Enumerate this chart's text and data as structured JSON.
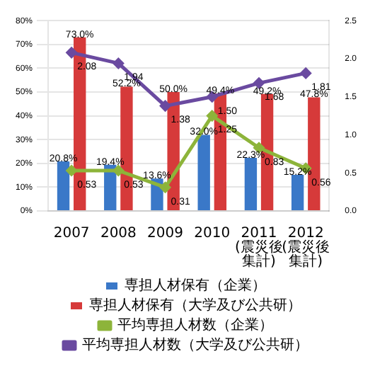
{
  "chart_data": {
    "type": "bar",
    "categories": [
      "2007",
      "2008",
      "2009",
      "2010",
      "2011(震災後集計)",
      "2012(震災後集計)"
    ],
    "series": [
      {
        "name": "専担人材保有（企業）",
        "color": "#3a78c8",
        "values": [
          20.8,
          19.4,
          13.6,
          32.0,
          22.3,
          15.2
        ],
        "value_labels": [
          "20.8%",
          "19.4%",
          "13.6%",
          "32.0%",
          "22.3%",
          "15.2%"
        ]
      },
      {
        "name": "専担人材保有（大学及び公共研）",
        "color": "#d63a3a",
        "values": [
          73.0,
          52.2,
          50.0,
          49.4,
          49.2,
          47.8
        ],
        "value_labels": [
          "73.0%",
          "52.2%",
          "50.0%",
          "49.4%",
          "49.2%",
          "47.8%"
        ]
      },
      {
        "name": "平均専担人材数（企業）",
        "type": "line",
        "axis": "y2",
        "color": "#8db43a",
        "values": [
          0.53,
          0.53,
          0.31,
          1.25,
          0.83,
          0.56
        ],
        "value_labels": [
          "0.53",
          "0.53",
          "0.31",
          "1.25",
          "0.83",
          "0.56"
        ]
      },
      {
        "name": "平均専担人材数（大学及び公共研）",
        "type": "line",
        "axis": "y2",
        "color": "#6a4aa0",
        "values": [
          2.08,
          1.94,
          1.38,
          1.5,
          1.68,
          1.81
        ],
        "value_labels": [
          "2.08",
          "1.94",
          "1.38",
          "1.50",
          "1.68",
          "1.81"
        ]
      }
    ],
    "ylim": [
      0,
      80
    ],
    "yticks": [
      {
        "value": 0,
        "label": "0%"
      },
      {
        "value": 10,
        "label": "10%"
      },
      {
        "value": 20,
        "label": "20%"
      },
      {
        "value": 30,
        "label": "30%"
      },
      {
        "value": 40,
        "label": "40%"
      },
      {
        "value": 50,
        "label": "50%"
      },
      {
        "value": 60,
        "label": "60%"
      },
      {
        "value": 70,
        "label": "70%"
      },
      {
        "value": 80,
        "label": "80%"
      }
    ],
    "y2lim": [
      0,
      2.5
    ],
    "y2ticks": [
      {
        "value": 0,
        "label": "0.0"
      },
      {
        "value": 0.5,
        "label": "0.5"
      },
      {
        "value": 1,
        "label": "1.0"
      },
      {
        "value": 1.5,
        "label": "1.5"
      },
      {
        "value": 2,
        "label": "2.0"
      },
      {
        "value": 2.5,
        "label": "2.5"
      }
    ],
    "grid": "y",
    "legend": "bottom",
    "marker": "diamond"
  }
}
